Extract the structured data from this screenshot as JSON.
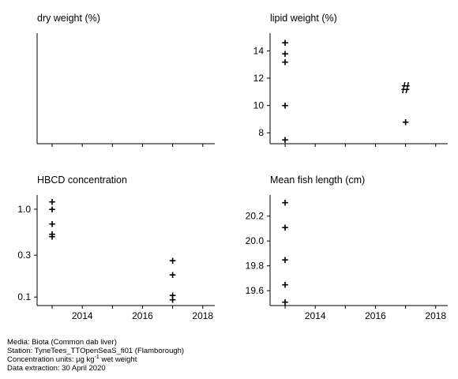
{
  "chart_data": [
    {
      "type": "scatter",
      "title": "dry weight (%)",
      "xlim": [
        2012.5,
        2018.4
      ],
      "x_ticks": [
        2013,
        2014,
        2015,
        2016,
        2017,
        2018
      ],
      "x_tick_labels": [],
      "y_ticks": [],
      "y_tick_labels": [],
      "points": []
    },
    {
      "type": "scatter",
      "title": "lipid weight (%)",
      "xlim": [
        2012.5,
        2018.4
      ],
      "ylim": [
        7.2,
        15.3
      ],
      "x_ticks": [
        2013,
        2014,
        2015,
        2016,
        2017,
        2018
      ],
      "x_tick_labels": [],
      "y_ticks": [
        8,
        10,
        12,
        14
      ],
      "y_tick_labels": [
        "8",
        "10",
        "12",
        "14"
      ],
      "points": [
        {
          "x": 2013,
          "y": 14.6,
          "marker": "+"
        },
        {
          "x": 2013,
          "y": 13.8,
          "marker": "+"
        },
        {
          "x": 2013,
          "y": 13.2,
          "marker": "+"
        },
        {
          "x": 2013,
          "y": 10.0,
          "marker": "+"
        },
        {
          "x": 2013,
          "y": 7.5,
          "marker": "+"
        },
        {
          "x": 2017,
          "y": 11.2,
          "marker": "#"
        },
        {
          "x": 2017,
          "y": 8.8,
          "marker": "+"
        }
      ]
    },
    {
      "type": "scatter",
      "title": "HBCD concentration",
      "yscale": "log",
      "xlim": [
        2012.5,
        2018.4
      ],
      "ylim": [
        0.08,
        1.45
      ],
      "x_ticks": [
        2014,
        2016,
        2018
      ],
      "x_minor_ticks": [
        2013,
        2015,
        2017
      ],
      "x_tick_labels": [
        "2014",
        "2016",
        "2018"
      ],
      "y_ticks": [
        0.1,
        0.3,
        1.0
      ],
      "y_tick_labels": [
        "0.1",
        "0.3",
        "1.0"
      ],
      "points": [
        {
          "x": 2013,
          "y": 1.22,
          "marker": "+"
        },
        {
          "x": 2013,
          "y": 1.0,
          "marker": "+"
        },
        {
          "x": 2013,
          "y": 0.68,
          "marker": "+"
        },
        {
          "x": 2013,
          "y": 0.52,
          "marker": "+"
        },
        {
          "x": 2013,
          "y": 0.49,
          "marker": "+"
        },
        {
          "x": 2017,
          "y": 0.26,
          "marker": "+"
        },
        {
          "x": 2017,
          "y": 0.18,
          "marker": "+"
        },
        {
          "x": 2017,
          "y": 0.105,
          "marker": "+"
        },
        {
          "x": 2017,
          "y": 0.093,
          "marker": "+"
        }
      ]
    },
    {
      "type": "scatter",
      "title": "Mean fish length (cm)",
      "xlim": [
        2012.5,
        2018.4
      ],
      "ylim": [
        19.48,
        20.37
      ],
      "x_ticks": [
        2014,
        2016,
        2018
      ],
      "x_minor_ticks": [
        2013,
        2015,
        2017
      ],
      "x_tick_labels": [
        "2014",
        "2016",
        "2018"
      ],
      "y_ticks": [
        19.6,
        19.8,
        20.0,
        20.2
      ],
      "y_tick_labels": [
        "19.6",
        "19.8",
        "20.0",
        "20.2"
      ],
      "points": [
        {
          "x": 2013,
          "y": 20.31,
          "marker": "+"
        },
        {
          "x": 2013,
          "y": 20.11,
          "marker": "+"
        },
        {
          "x": 2013,
          "y": 19.85,
          "marker": "+"
        },
        {
          "x": 2013,
          "y": 19.65,
          "marker": "+"
        },
        {
          "x": 2013,
          "y": 19.51,
          "marker": "+"
        }
      ]
    }
  ],
  "footer": {
    "media": "Media: Biota (Common dab liver)",
    "station": "Station: TyneTees_TTOpenSeaS_fi01 (Flamborough)",
    "units_prefix": "Concentration units:  µg kg",
    "units_exponent": "-1",
    "units_suffix": " wet weight",
    "extraction": "Data extraction: 30 April 2020"
  }
}
